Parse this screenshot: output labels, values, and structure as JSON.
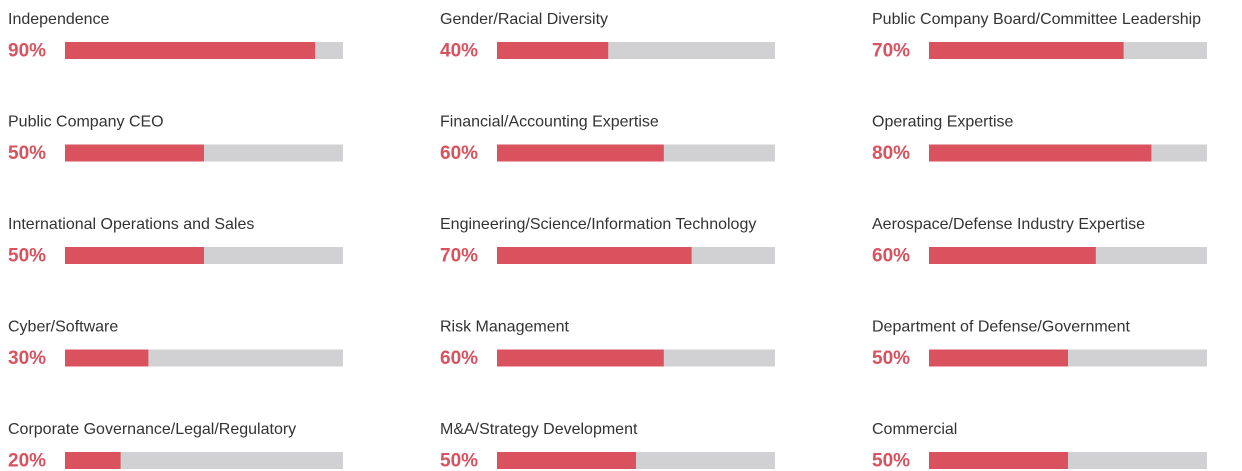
{
  "chart_data": {
    "type": "bar",
    "categories": [
      "Independence",
      "Public Company CEO",
      "International Operations and Sales",
      "Cyber/Software",
      "Corporate Governance/Legal/Regulatory",
      "Gender/Racial Diversity",
      "Financial/Accounting Expertise",
      "Engineering/Science/Information Technology",
      "Risk Management",
      "M&A/Strategy Development",
      "Public Company Board/Committee Leadership",
      "Operating Expertise",
      "Aerospace/Defense Industry Expertise",
      "Department of Defense/Government",
      "Commercial"
    ],
    "values": [
      90,
      50,
      50,
      30,
      20,
      40,
      60,
      70,
      60,
      50,
      70,
      80,
      60,
      50,
      50
    ],
    "value_labels": [
      "90%",
      "50%",
      "50%",
      "30%",
      "20%",
      "40%",
      "60%",
      "70%",
      "60%",
      "50%",
      "70%",
      "80%",
      "60%",
      "50%",
      "50%"
    ],
    "xlim": [
      0,
      100
    ],
    "color": "#d9525e",
    "track_color": "#d1d1d3"
  }
}
